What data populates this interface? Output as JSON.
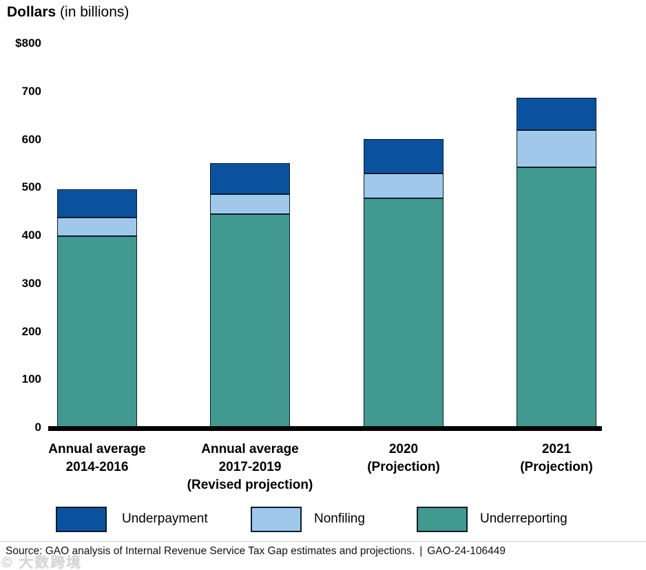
{
  "title": {
    "bold": "Dollars",
    "rest": " (in billions)"
  },
  "colors": {
    "underpayment": "#0b529e",
    "nonfiling": "#a0c8eb",
    "underreporting": "#42998f",
    "bar_border": "#0a1b2b",
    "axis_line": "#000000"
  },
  "chart_data": {
    "type": "bar",
    "stacked": true,
    "title": "Dollars (in billions)",
    "xlabel": "",
    "ylabel": "Dollars (in billions)",
    "ylim": [
      0,
      800
    ],
    "grid": false,
    "legend_position": "bottom",
    "categories": [
      {
        "lines": [
          "Annual average",
          "2014-2016"
        ]
      },
      {
        "lines": [
          "Annual average",
          "2017-2019",
          "(Revised projection)"
        ]
      },
      {
        "lines": [
          "2020",
          "(Projection)"
        ]
      },
      {
        "lines": [
          "2021",
          "(Projection)"
        ]
      }
    ],
    "series": [
      {
        "name": "Underreporting",
        "color_key": "underreporting",
        "values": [
          398,
          445,
          478,
          542
        ]
      },
      {
        "name": "Nonfiling",
        "color_key": "nonfiling",
        "values": [
          39,
          41,
          51,
          77
        ]
      },
      {
        "name": "Underpayment",
        "color_key": "underpayment",
        "values": [
          59,
          64,
          72,
          68
        ]
      }
    ],
    "totals": [
      496,
      550,
      601,
      687
    ],
    "yticks": [
      {
        "label": "$800",
        "value": 800
      },
      {
        "label": "700",
        "value": 700
      },
      {
        "label": "600",
        "value": 600
      },
      {
        "label": "500",
        "value": 500
      },
      {
        "label": "400",
        "value": 400
      },
      {
        "label": "300",
        "value": 300
      },
      {
        "label": "200",
        "value": 200
      },
      {
        "label": "100",
        "value": 100
      },
      {
        "label": "0",
        "value": 0
      }
    ]
  },
  "legend": {
    "items": [
      {
        "label": "Underpayment",
        "color_key": "underpayment"
      },
      {
        "label": "Nonfiling",
        "color_key": "nonfiling"
      },
      {
        "label": "Underreporting",
        "color_key": "underreporting"
      }
    ]
  },
  "source": {
    "text": "Source: GAO analysis of Internal Revenue Service Tax Gap estimates and projections.",
    "separator": "|",
    "report_id": "GAO-24-106449"
  },
  "watermark": "© 大数跨境"
}
